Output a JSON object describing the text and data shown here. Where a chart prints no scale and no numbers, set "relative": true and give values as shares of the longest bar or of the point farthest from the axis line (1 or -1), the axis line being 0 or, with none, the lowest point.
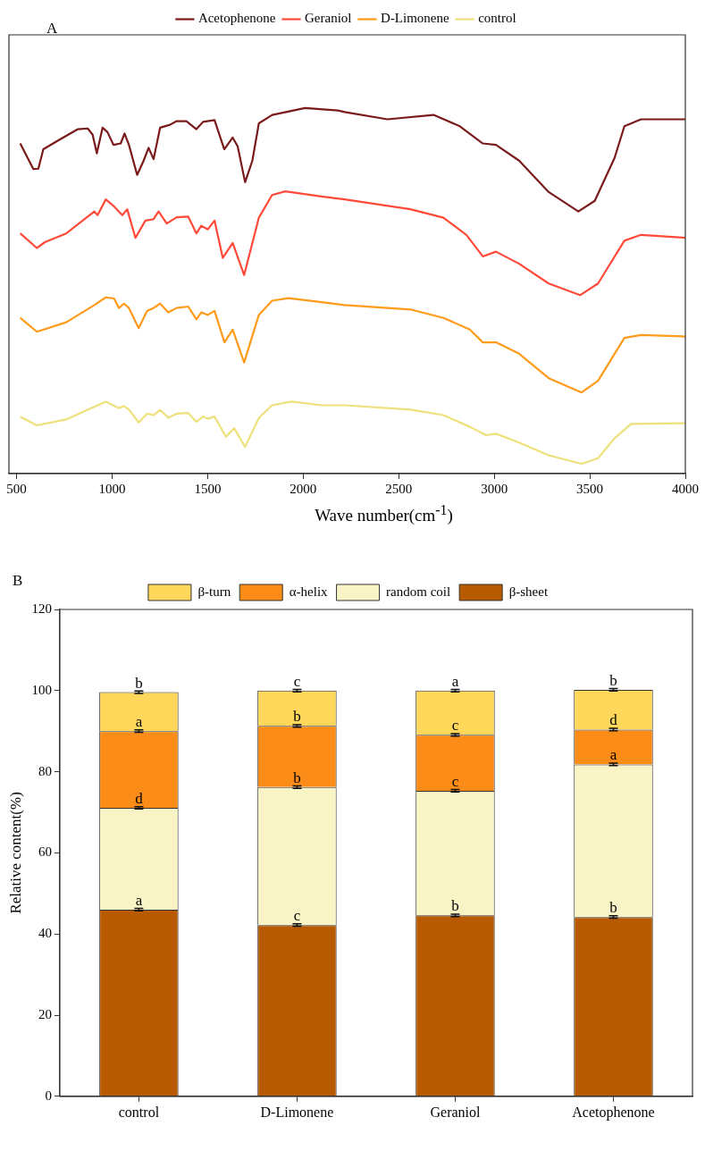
{
  "chart_data": [
    {
      "type": "line",
      "relative": true,
      "annotations": [
        "A"
      ],
      "xlabel": "Wave number(cm$^{-1}$)",
      "xlim": [
        460,
        4000
      ],
      "xticks": [
        500,
        1000,
        1500,
        2000,
        2500,
        3000,
        3500,
        4000
      ],
      "tick_labels": "x",
      "grid": false,
      "legend": "top",
      "marker": "none",
      "series": [
        {
          "name": "Acetophenone",
          "color": "#7b1a1a",
          "x": [
            519,
            588,
            614,
            640,
            717,
            821,
            872,
            898,
            920,
            950,
            976,
            1007,
            1045,
            1065,
            1088,
            1131,
            1165,
            1191,
            1217,
            1251,
            1303,
            1338,
            1389,
            1441,
            1476,
            1536,
            1587,
            1631,
            1657,
            1696,
            1734,
            1768,
            1838,
            2010,
            2182,
            2217,
            2441,
            2682,
            2820,
            2940,
            3009,
            3130,
            3285,
            3440,
            3526,
            3630,
            3681,
            3768,
            4000
          ],
          "values": [
            0.903,
            0.833,
            0.834,
            0.887,
            0.911,
            0.942,
            0.944,
            0.927,
            0.876,
            0.946,
            0.934,
            0.899,
            0.903,
            0.93,
            0.899,
            0.817,
            0.856,
            0.891,
            0.86,
            0.946,
            0.954,
            0.964,
            0.964,
            0.942,
            0.962,
            0.967,
            0.887,
            0.919,
            0.895,
            0.797,
            0.856,
            0.958,
            0.981,
            1,
            0.993,
            0.989,
            0.969,
            0.981,
            0.95,
            0.903,
            0.899,
            0.856,
            0.77,
            0.717,
            0.746,
            0.864,
            0.95,
            0.969,
            0.969
          ]
        },
        {
          "name": "Geraniol",
          "color": "#ff4a3a",
          "x": [
            519,
            606,
            648,
            760,
            907,
            924,
            967,
            1010,
            1053,
            1079,
            1122,
            1174,
            1217,
            1243,
            1286,
            1338,
            1398,
            1441,
            1467,
            1501,
            1536,
            1579,
            1631,
            1691,
            1768,
            1837,
            1906,
            2096,
            2217,
            2561,
            2734,
            2854,
            2940,
            3009,
            3130,
            3285,
            3449,
            3543,
            3681,
            3768,
            4000
          ],
          "values": [
            0.657,
            0.617,
            0.633,
            0.657,
            0.717,
            0.707,
            0.75,
            0.731,
            0.707,
            0.723,
            0.645,
            0.692,
            0.696,
            0.717,
            0.684,
            0.701,
            0.703,
            0.657,
            0.678,
            0.668,
            0.692,
            0.59,
            0.631,
            0.543,
            0.7,
            0.762,
            0.772,
            0.758,
            0.75,
            0.723,
            0.7,
            0.653,
            0.594,
            0.607,
            0.574,
            0.52,
            0.488,
            0.52,
            0.637,
            0.653,
            0.645
          ]
        },
        {
          "name": "D-Limonene",
          "color": "#ff9a1a",
          "x": [
            519,
            606,
            760,
            907,
            967,
            1010,
            1036,
            1062,
            1088,
            1139,
            1183,
            1217,
            1251,
            1294,
            1338,
            1398,
            1441,
            1467,
            1501,
            1536,
            1588,
            1631,
            1691,
            1768,
            1837,
            1923,
            2096,
            2217,
            2561,
            2734,
            2872,
            2940,
            3009,
            3130,
            3285,
            3457,
            3543,
            3681,
            3768,
            4000
          ],
          "values": [
            0.426,
            0.388,
            0.414,
            0.461,
            0.482,
            0.479,
            0.453,
            0.465,
            0.453,
            0.398,
            0.445,
            0.453,
            0.465,
            0.441,
            0.453,
            0.457,
            0.422,
            0.441,
            0.434,
            0.445,
            0.359,
            0.394,
            0.304,
            0.434,
            0.473,
            0.48,
            0.469,
            0.461,
            0.449,
            0.426,
            0.394,
            0.359,
            0.359,
            0.328,
            0.261,
            0.222,
            0.254,
            0.371,
            0.379,
            0.375
          ]
        },
        {
          "name": "control",
          "color": "#eee07a",
          "x": [
            519,
            606,
            760,
            890,
            967,
            1036,
            1062,
            1088,
            1139,
            1183,
            1217,
            1251,
            1294,
            1338,
            1398,
            1441,
            1476,
            1501,
            1536,
            1596,
            1639,
            1696,
            1768,
            1837,
            1940,
            2096,
            2217,
            2561,
            2734,
            2872,
            2958,
            3009,
            3130,
            3285,
            3457,
            3543,
            3630,
            3716,
            4000
          ],
          "values": [
            0.156,
            0.132,
            0.148,
            0.179,
            0.197,
            0.179,
            0.185,
            0.175,
            0.14,
            0.164,
            0.16,
            0.174,
            0.153,
            0.164,
            0.166,
            0.142,
            0.156,
            0.15,
            0.156,
            0.101,
            0.124,
            0.073,
            0.152,
            0.187,
            0.197,
            0.187,
            0.187,
            0.175,
            0.16,
            0.128,
            0.105,
            0.109,
            0.085,
            0.05,
            0.027,
            0.042,
            0.097,
            0.136,
            0.138
          ]
        }
      ]
    },
    {
      "type": "bar",
      "stacked": true,
      "ylabel": "Relative content(%)",
      "categories": [
        "control",
        "D-Limonene",
        "Geraniol",
        "Acetophenone"
      ],
      "ylim": [
        0,
        120
      ],
      "yticks": [
        0,
        20,
        40,
        60,
        80,
        100,
        120
      ],
      "grid": false,
      "legend": "top",
      "series": [
        {
          "name": "β-sheet",
          "color": "#b85a00",
          "values": [
            46,
            42.2,
            44.6,
            44.2
          ],
          "errors": [
            0.3,
            0.3,
            0.3,
            0.3
          ]
        },
        {
          "name": "random coil",
          "color": "#f8f4c6",
          "values": [
            25.1,
            34.0,
            30.7,
            37.6
          ],
          "errors": [
            0.3,
            0.3,
            0.3,
            0.3
          ]
        },
        {
          "name": "α-helix",
          "color": "#fb8c17",
          "values": [
            18.9,
            15.1,
            13.8,
            8.6
          ],
          "errors": [
            0.3,
            0.3,
            0.3,
            0.3
          ]
        },
        {
          "name": "β-turn",
          "color": "#ffd75a",
          "values": [
            9.6,
            8.7,
            10.9,
            9.8
          ],
          "errors": [
            0.3,
            0.3,
            0.3,
            0.3
          ]
        }
      ],
      "annotations": [
        "B",
        {
          "text": "a",
          "x": "control",
          "y": 46
        },
        {
          "text": "c",
          "x": "D-Limonene",
          "y": 42.2
        },
        {
          "text": "b",
          "x": "Geraniol",
          "y": 44.6
        },
        {
          "text": "b",
          "x": "Acetophenone",
          "y": 44.2
        },
        {
          "text": "d",
          "x": "control",
          "y": 71.1
        },
        {
          "text": "b",
          "x": "D-Limonene",
          "y": 76.2
        },
        {
          "text": "c",
          "x": "Geraniol",
          "y": 75.3
        },
        {
          "text": "a",
          "x": "Acetophenone",
          "y": 81.8
        },
        {
          "text": "a",
          "x": "control",
          "y": 90
        },
        {
          "text": "b",
          "x": "D-Limonene",
          "y": 91.3
        },
        {
          "text": "c",
          "x": "Geraniol",
          "y": 89.1
        },
        {
          "text": "d",
          "x": "Acetophenone",
          "y": 90.4
        },
        {
          "text": "b",
          "x": "control",
          "y": 99.6
        },
        {
          "text": "c",
          "x": "D-Limonene",
          "y": 100
        },
        {
          "text": "a",
          "x": "Geraniol",
          "y": 100
        },
        {
          "text": "b",
          "x": "Acetophenone",
          "y": 100.2
        }
      ]
    }
  ]
}
